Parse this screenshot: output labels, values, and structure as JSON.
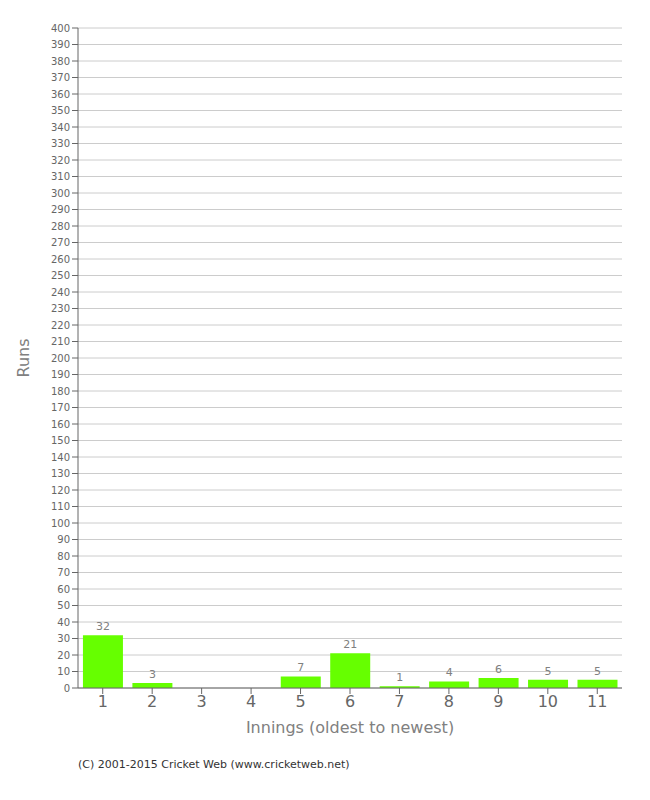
{
  "chart_data": {
    "type": "bar",
    "xlabel": "Innings (oldest to newest)",
    "ylabel": "Runs",
    "categories": [
      1,
      2,
      3,
      4,
      5,
      6,
      7,
      8,
      9,
      10,
      11
    ],
    "values": [
      32,
      3,
      0,
      0,
      7,
      21,
      1,
      4,
      6,
      5,
      5
    ],
    "color": "#66ff00",
    "ylim": [
      0,
      400
    ],
    "yticks": [
      0,
      10,
      20,
      30,
      40,
      50,
      60,
      70,
      80,
      90,
      100,
      110,
      120,
      130,
      140,
      150,
      160,
      170,
      180,
      190,
      200,
      210,
      220,
      230,
      240,
      250,
      260,
      270,
      280,
      290,
      300,
      310,
      320,
      330,
      340,
      350,
      360,
      370,
      380,
      390,
      400
    ],
    "grid": true,
    "data_labels": true,
    "annotations": [
      "(C) 2001-2015 Cricket Web (www.cricketweb.net)"
    ]
  }
}
